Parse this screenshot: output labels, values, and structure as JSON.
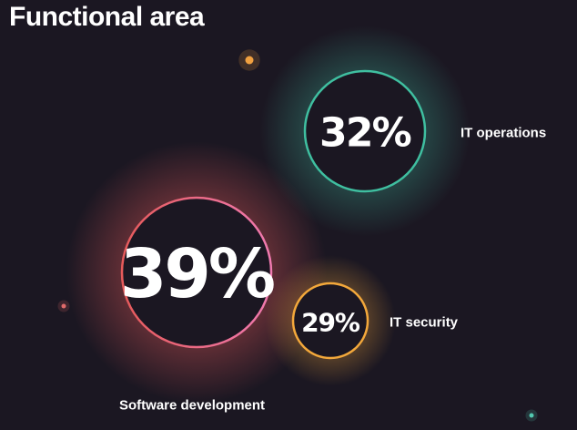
{
  "title": "Functional area",
  "chart_data": {
    "type": "bubble",
    "title": "Functional area",
    "series": [
      {
        "label": "Software development",
        "value": 39,
        "display": "39%",
        "color": "#e65a5a",
        "color2": "#f07ab0"
      },
      {
        "label": "IT operations",
        "value": 32,
        "display": "32%",
        "color": "#3fbfa0",
        "color2": "#3fbfa0"
      },
      {
        "label": "IT security",
        "value": 29,
        "display": "29%",
        "color": "#f3a83b",
        "color2": "#f3a83b"
      }
    ]
  },
  "decor_colors": {
    "orange": "#f0a040",
    "pink": "#e06a6a",
    "teal": "#52c9b0"
  }
}
